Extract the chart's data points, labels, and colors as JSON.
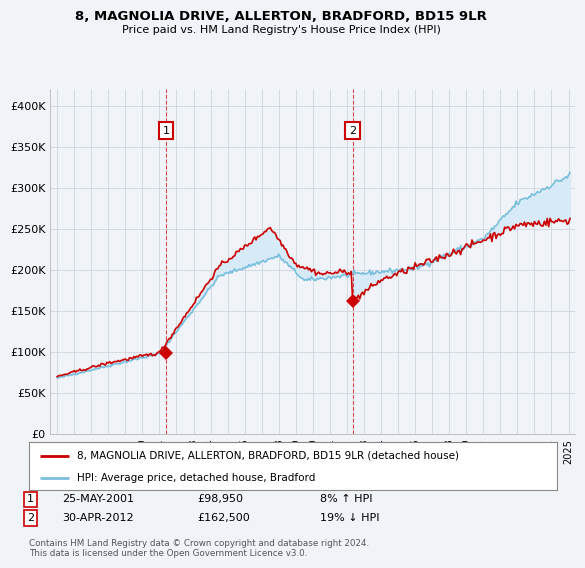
{
  "title": "8, MAGNOLIA DRIVE, ALLERTON, BRADFORD, BD15 9LR",
  "subtitle": "Price paid vs. HM Land Registry's House Price Index (HPI)",
  "legend_line1": "8, MAGNOLIA DRIVE, ALLERTON, BRADFORD, BD15 9LR (detached house)",
  "legend_line2": "HPI: Average price, detached house, Bradford",
  "sale1_date": "25-MAY-2001",
  "sale1_price": "£98,950",
  "sale1_hpi": "8% ↑ HPI",
  "sale1_year": 2001.38,
  "sale1_value": 98950,
  "sale2_date": "30-APR-2012",
  "sale2_price": "£162,500",
  "sale2_hpi": "19% ↓ HPI",
  "sale2_year": 2012.33,
  "sale2_value": 162500,
  "footer": "Contains HM Land Registry data © Crown copyright and database right 2024.\nThis data is licensed under the Open Government Licence v3.0.",
  "hpi_color": "#7bbfdc",
  "hpi_fill_color": "#d6eaf8",
  "price_color": "#cc0000",
  "background_color": "#f0f4f8",
  "plot_bg_color": "#f0f4f8",
  "ylim": [
    0,
    420000
  ],
  "yticks": [
    0,
    50000,
    100000,
    150000,
    200000,
    250000,
    300000,
    350000,
    400000
  ],
  "xlim_start": 1994.6,
  "xlim_end": 2025.4,
  "annotation_box_color": "#cc0000",
  "ann1_x": 2001.38,
  "ann1_y": 350000,
  "ann2_x": 2012.33,
  "ann2_y": 350000
}
